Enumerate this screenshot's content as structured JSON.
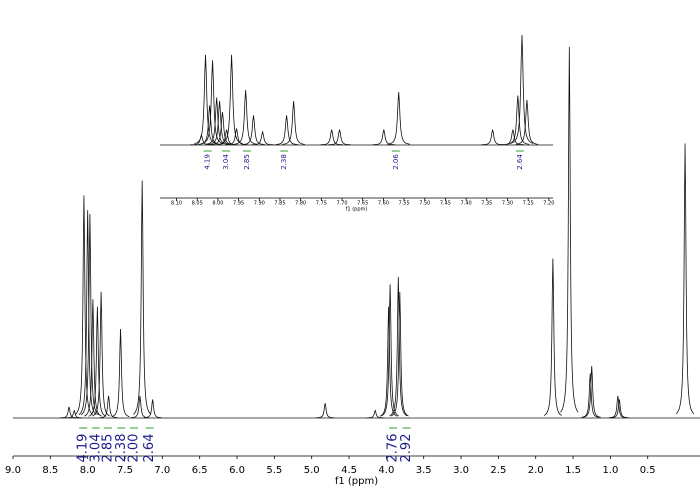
{
  "chart_data": [
    {
      "type": "nmr",
      "xlabel": "f1 (ppm)",
      "xlim": [
        9.0,
        -0.2
      ],
      "ylim": [
        0,
        100
      ],
      "xticks": [
        {
          "value": 9.0,
          "label": "9.0"
        },
        8.5,
        {
          "value": 8.0,
          "label": "8.0"
        },
        7.5,
        {
          "value": 7.0,
          "label": "7.0"
        },
        6.5,
        {
          "value": 6.0,
          "label": "6.0"
        },
        5.5,
        {
          "value": 5.0,
          "label": "5.0"
        },
        4.5,
        {
          "value": 4.0,
          "label": "4.0"
        },
        3.5,
        {
          "value": 3.0,
          "label": "3.0"
        },
        2.5,
        {
          "value": 2.0,
          "label": "2.0"
        },
        1.5,
        {
          "value": 1.0,
          "label": "1.0"
        },
        0.5
      ],
      "x": [
        8.25,
        8.18,
        8.05,
        8.0,
        7.97,
        7.93,
        7.87,
        7.82,
        7.72,
        7.56,
        7.3,
        7.27,
        7.13,
        4.82,
        4.15,
        3.97,
        3.95,
        3.84,
        3.82,
        1.77,
        1.55,
        1.27,
        1.25,
        0.9,
        0.88,
        0.0
      ],
      "values": [
        3,
        2,
        60,
        56,
        55,
        32,
        30,
        34,
        6,
        24,
        6,
        64,
        5,
        4,
        2,
        30,
        36,
        38,
        34,
        43,
        100,
        12,
        14,
        6,
        5,
        74
      ],
      "integrals": {
        "x": [
          8.06,
          7.89,
          7.73,
          7.55,
          7.38,
          7.17,
          3.91,
          3.73
        ],
        "values": [
          4.19,
          3.04,
          2.85,
          2.38,
          2.0,
          2.64,
          2.76,
          2.92
        ],
        "value_labels": [
          "4.19",
          "3.04",
          "2.85",
          "2.38",
          "2.00",
          "2.64",
          "2.76",
          "2.92"
        ]
      }
    },
    {
      "type": "nmr",
      "xlabel": "f1 (ppm)",
      "xlim": [
        8.14,
        7.19
      ],
      "ylim": [
        0,
        100
      ],
      "xticks": [
        {
          "value": 8.1,
          "label": "8.10"
        },
        8.05,
        {
          "value": 8.0,
          "label": "8.00"
        },
        7.95,
        {
          "value": 7.9,
          "label": "7.90"
        },
        7.85,
        {
          "value": 7.8,
          "label": "7.80"
        },
        7.75,
        {
          "value": 7.7,
          "label": "7.70"
        },
        7.65,
        {
          "value": 7.6,
          "label": "7.60"
        },
        7.55,
        {
          "value": 7.5,
          "label": "7.50"
        },
        7.45,
        {
          "value": 7.4,
          "label": "7.40"
        },
        7.35,
        {
          "value": 7.3,
          "label": "7.30"
        },
        7.25,
        {
          "value": 7.2,
          "label": "7.20"
        }
      ],
      "x": [
        8.04,
        8.03,
        8.02,
        8.013,
        8.003,
        7.996,
        7.989,
        7.979,
        7.967,
        7.955,
        7.933,
        7.914,
        7.892,
        7.834,
        7.817,
        7.725,
        7.706,
        7.599,
        7.563,
        7.336,
        7.287,
        7.275,
        7.265,
        7.253
      ],
      "values": [
        9,
        82,
        36,
        77,
        43,
        40,
        30,
        14,
        82,
        15,
        50,
        27,
        12,
        27,
        40,
        14,
        14,
        14,
        48,
        14,
        14,
        45,
        100,
        41
      ],
      "integrals": {
        "x": [
          8.025,
          7.98,
          7.93,
          7.84,
          7.57,
          7.27
        ],
        "values": [
          4.19,
          3.04,
          2.85,
          2.38,
          2.06,
          2.64
        ]
      }
    }
  ]
}
